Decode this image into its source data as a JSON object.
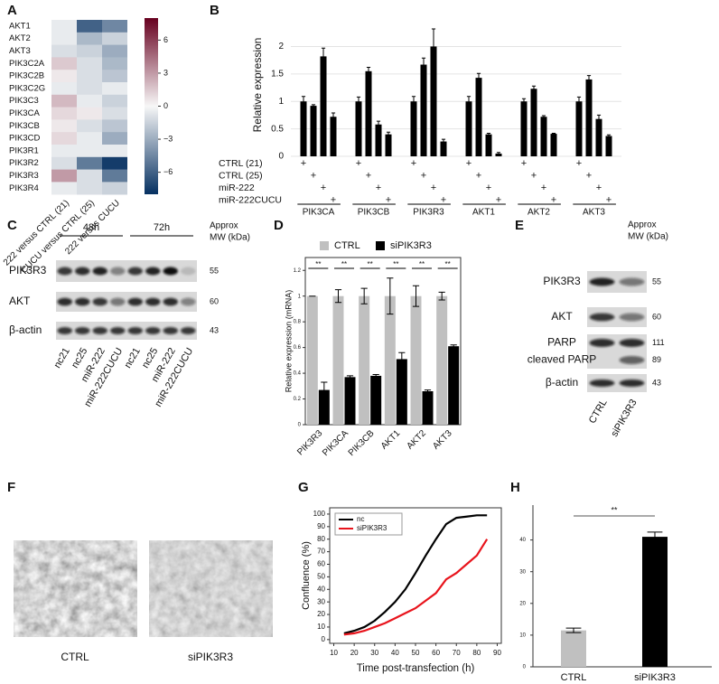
{
  "chart_data": [
    {
      "label": "A",
      "type": "heatmap",
      "rows": [
        "AKT1",
        "AKT2",
        "AKT3",
        "PIK3C2A",
        "PIK3C2B",
        "PIK3C2G",
        "PIK3C3",
        "PIK3CA",
        "PIK3CB",
        "PIK3CD",
        "PIK3R1",
        "PIK3R2",
        "PIK3R3",
        "PIK3R4"
      ],
      "columns": [
        "222 versus CTRL (21)",
        "CUCU versus CTRL (25)",
        "222 versus CUCU"
      ],
      "values": [
        [
          -0.5,
          -6,
          -4.5
        ],
        [
          -0.5,
          -2.5,
          -1.5
        ],
        [
          -1,
          -1.5,
          -3
        ],
        [
          1.5,
          -1,
          -2.5
        ],
        [
          0.5,
          -1,
          -2
        ],
        [
          -0.5,
          -1,
          -0.5
        ],
        [
          2,
          -0.5,
          -1.5
        ],
        [
          1,
          0.5,
          -1
        ],
        [
          0.5,
          -1,
          -2
        ],
        [
          1,
          -0.5,
          -3
        ],
        [
          -0.5,
          -0.5,
          -0.5
        ],
        [
          -1,
          -5,
          -7.5
        ],
        [
          3,
          -1,
          -5
        ],
        [
          -0.5,
          -1,
          -1.5
        ]
      ],
      "zlim": [
        -8,
        8
      ],
      "zticks": [
        6,
        3,
        0,
        {
          "value": -3,
          "label": "−3"
        },
        {
          "value": -6,
          "label": "−6"
        }
      ],
      "colors": [
        "#053061",
        "#f7f7f7",
        "#67001f"
      ]
    },
    {
      "label": "B",
      "type": "bar",
      "ylabel": "Relative expression",
      "categories": [
        "PIK3CA",
        "PIK3CB",
        "PIK3R3",
        "AKT1",
        "AKT2",
        "AKT3"
      ],
      "series": [
        {
          "name": "CTRL (21)",
          "color": "#000000",
          "values": [
            1,
            1,
            1,
            1,
            1,
            1
          ],
          "errors": [
            0.09,
            0.08,
            0.09,
            0.09,
            0.05,
            0.08
          ]
        },
        {
          "name": "CTRL (25)",
          "color": "#000000",
          "values": [
            0.92,
            1.55,
            1.67,
            1.43,
            1.23,
            1.4
          ],
          "errors": [
            0.02,
            0.07,
            0.12,
            0.08,
            0.05,
            0.07
          ]
        },
        {
          "name": "miR-222",
          "color": "#000000",
          "values": [
            1.82,
            0.58,
            2.0,
            0.4,
            0.72,
            0.68
          ],
          "errors": [
            0.15,
            0.06,
            0.32,
            0.02,
            0.02,
            0.07
          ]
        },
        {
          "name": "miR-222CUCU",
          "color": "#000000",
          "values": [
            0.72,
            0.4,
            0.27,
            0.05,
            0.41,
            0.37
          ],
          "errors": [
            0.07,
            0.04,
            0.04,
            0.02,
            0.01,
            0.02
          ]
        }
      ],
      "marker": "+",
      "ylim": [
        0,
        2.6
      ],
      "yticks": [
        0,
        0.5,
        1,
        1.5,
        2
      ],
      "grid": true
    },
    {
      "label": "D",
      "type": "bar",
      "ylabel": "Relative expression (mRNA)",
      "categories": [
        "PIK3R3",
        "PIK3CA",
        "PIK3CB",
        "AKT1",
        "AKT2",
        "AKT3"
      ],
      "series": [
        {
          "name": "CTRL",
          "color": "#c0c0c0",
          "values": [
            1,
            1,
            1,
            1,
            1,
            1
          ],
          "errors": [
            0,
            0.05,
            0.06,
            0.14,
            0.08,
            0.03
          ]
        },
        {
          "name": "siPIK3R3",
          "color": "#000000",
          "values": [
            0.27,
            0.37,
            0.38,
            0.51,
            0.26,
            0.61
          ],
          "errors": [
            0.06,
            0.01,
            0.01,
            0.05,
            0.01,
            0.01
          ]
        }
      ],
      "significance": [
        "**",
        "**",
        "**",
        "**",
        "**",
        "**"
      ],
      "ylim": [
        0,
        1.3
      ],
      "yticks": [
        0,
        0.2,
        0.4,
        0.6,
        0.8,
        1,
        1.2
      ],
      "legend": "top"
    },
    {
      "label": "G",
      "type": "line",
      "xlabel": "Time post-transfection (h)",
      "ylabel": "Confluence (%)",
      "x": [
        15,
        20,
        25,
        30,
        35,
        40,
        45,
        50,
        55,
        60,
        65,
        70,
        75,
        80,
        85
      ],
      "series": [
        {
          "name": "nc",
          "color": "#000000",
          "values": [
            5,
            7,
            10,
            15,
            22,
            30,
            40,
            53,
            67,
            80,
            92,
            97,
            98,
            99,
            99
          ]
        },
        {
          "name": "siPIK3R3",
          "color": "#e8141c",
          "values": [
            4,
            5,
            7,
            10,
            13,
            17,
            21,
            25,
            31,
            37,
            48,
            53,
            60,
            67,
            80
          ]
        }
      ],
      "xlim": [
        8,
        92
      ],
      "xticks": [
        10,
        20,
        30,
        40,
        50,
        60,
        70,
        80,
        90
      ],
      "ylim": [
        -3,
        105
      ],
      "yticks": [
        0,
        10,
        20,
        30,
        40,
        50,
        60,
        70,
        80,
        90,
        100
      ],
      "legend": "top-left"
    },
    {
      "label": "H",
      "type": "bar",
      "categories": [
        "CTRL",
        "siPIK3R3"
      ],
      "values": [
        11.5,
        41
      ],
      "errors": [
        0.7,
        1.5
      ],
      "colors": [
        "#c0c0c0",
        "#000000"
      ],
      "significance": "**",
      "ylim": [
        0,
        51
      ],
      "yticks": [
        0,
        10,
        20,
        30,
        40
      ]
    }
  ],
  "blots": [
    {
      "label": "C",
      "time_points": [
        "48h",
        "72h"
      ],
      "mw_header": [
        "Approx",
        "MW (kDa)"
      ],
      "rows": [
        {
          "names": [
            "PIK3R3"
          ],
          "mw": [
            55
          ]
        },
        {
          "names": [
            "AKT"
          ],
          "mw": [
            60
          ]
        },
        {
          "names": [
            "β-actin"
          ],
          "mw": [
            43
          ]
        }
      ],
      "lanes": [
        "nc21",
        "nc25",
        "miR-222",
        "miR-222CUCU",
        "nc21",
        "nc25",
        "miR-222",
        "miR-222CUCU"
      ]
    },
    {
      "label": "E",
      "mw_header": [
        "Approx",
        "MW (kDa)"
      ],
      "rows": [
        {
          "names": [
            "PIK3R3"
          ],
          "mw": [
            55
          ]
        },
        {
          "names": [
            "AKT"
          ],
          "mw": [
            60
          ]
        },
        {
          "names": [
            "PARP",
            "cleaved PARP"
          ],
          "mw": [
            111,
            89
          ]
        },
        {
          "names": [
            "β-actin"
          ],
          "mw": [
            43
          ]
        }
      ],
      "lanes": [
        "CTRL",
        "siPIK3R3"
      ]
    }
  ],
  "micrographs": {
    "label": "F",
    "captions": [
      "CTRL",
      "siPIK3R3"
    ]
  }
}
